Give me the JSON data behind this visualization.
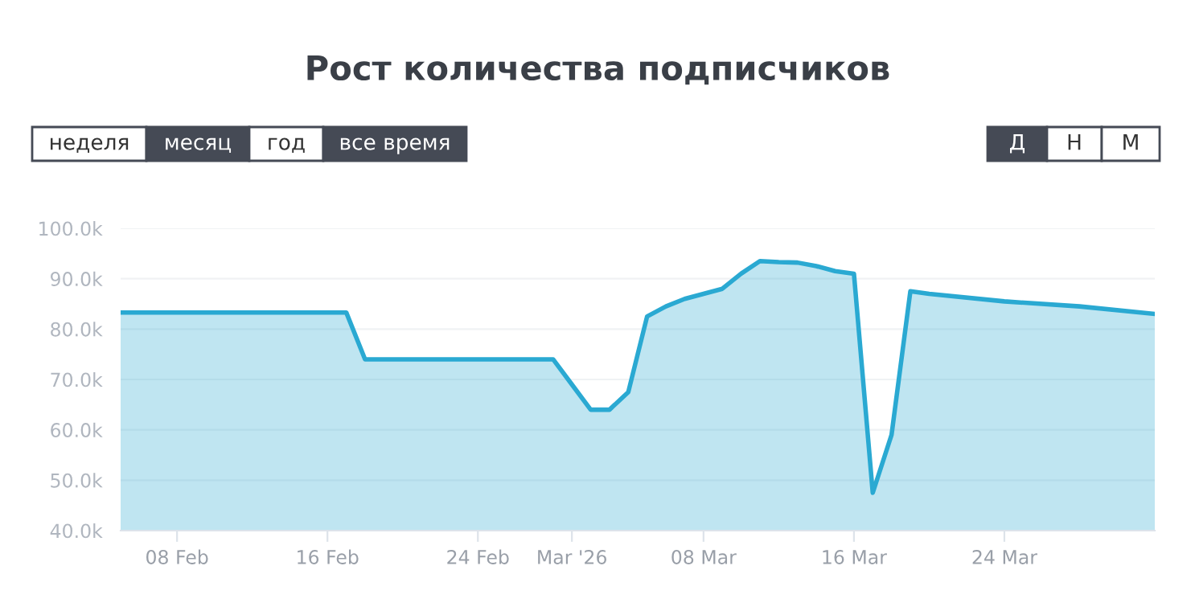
{
  "chart_data": {
    "type": "area",
    "title": "Рост количества подписчиков",
    "annotations": [
      "неделя",
      "месяц",
      "год",
      "все время",
      "Д",
      "Н",
      "М"
    ],
    "x": [
      "2026-02-05",
      "2026-02-17",
      "2026-02-18",
      "2026-02-28",
      "2026-03-01",
      "2026-03-02",
      "2026-03-03",
      "2026-03-04",
      "2026-03-05",
      "2026-03-06",
      "2026-03-07",
      "2026-03-08",
      "2026-03-09",
      "2026-03-10",
      "2026-03-11",
      "2026-03-12",
      "2026-03-13",
      "2026-03-14",
      "2026-03-15",
      "2026-03-16",
      "2026-03-17",
      "2026-03-18",
      "2026-03-19",
      "2026-03-20",
      "2026-03-24",
      "2026-03-28",
      "2026-04-01"
    ],
    "series": [
      {
        "color": "#2aa9d2",
        "values": [
          83.3,
          83.3,
          74,
          74,
          69,
          64,
          64,
          67.5,
          82.5,
          84.5,
          86,
          87,
          88,
          91,
          93.5,
          93.3,
          93.2,
          92.5,
          91.5,
          91,
          47.5,
          59,
          87.5,
          87,
          85.5,
          84.5,
          83
        ]
      }
    ],
    "xlim": [
      "2026-02-05",
      "2026-04-01"
    ],
    "xticks": [
      {
        "value": "2026-02-08",
        "label": "08 Feb"
      },
      {
        "value": "2026-02-16",
        "label": "16 Feb"
      },
      {
        "value": "2026-02-24",
        "label": "24 Feb"
      },
      {
        "value": "2026-03-01",
        "label": "Mar '26"
      },
      {
        "value": "2026-03-08",
        "label": "08 Mar"
      },
      {
        "value": "2026-03-16",
        "label": "16 Mar"
      },
      {
        "value": "2026-03-24",
        "label": "24 Mar"
      }
    ],
    "ylim": [
      40,
      100
    ],
    "yticks": [
      {
        "value": 40,
        "label": "40.0k"
      },
      {
        "value": 50,
        "label": "50.0k"
      },
      {
        "value": 60,
        "label": "60.0k"
      },
      {
        "value": 70,
        "label": "70.0k"
      },
      {
        "value": 80,
        "label": "80.0k"
      },
      {
        "value": 90,
        "label": "90.0k"
      },
      {
        "value": 100,
        "label": "100.0k"
      }
    ],
    "grid": "y",
    "legend": false,
    "marker": "none",
    "line_style": "solid"
  }
}
